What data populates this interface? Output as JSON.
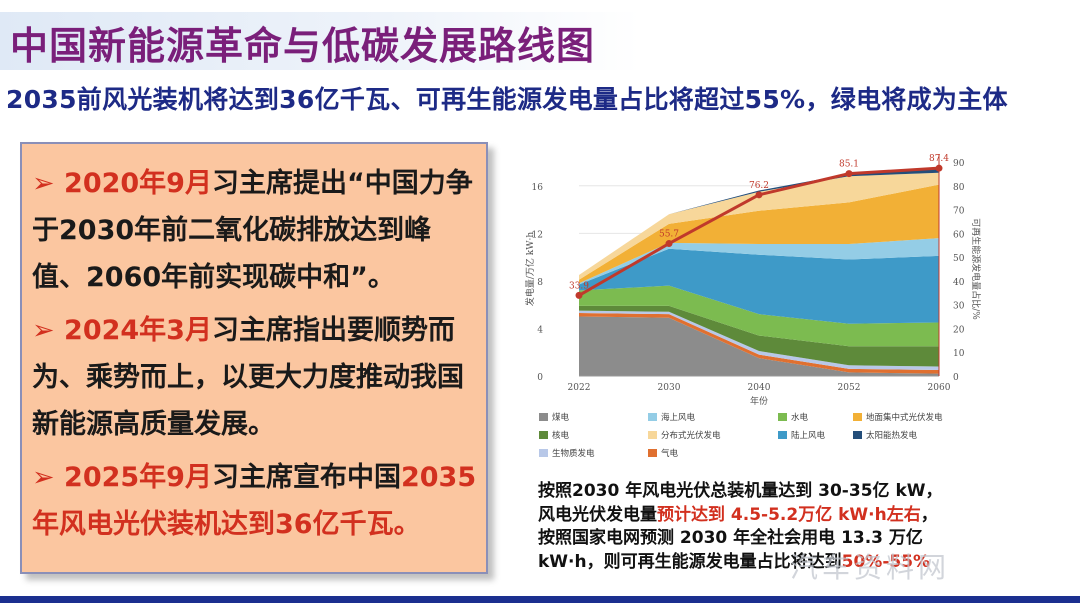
{
  "title": "中国新能源革命与低碳发展路线图",
  "subtitle": "2035前风光装机将达到36亿千瓦、可再生能源发电量占比将超过55%，绿电将成为主体",
  "bullets": [
    {
      "arrow": "➢",
      "date": "2020年9月",
      "text": "习主席提出“中国力争于2030年前二氧化碳排放达到峰值、2060年前实现碳中和”。"
    },
    {
      "arrow": "➢",
      "date": "2024年3月",
      "text": "习主席指出要顺势而为、乘势而上，以更大力度推动我国新能源高质量发展。"
    },
    {
      "arrow": "➢",
      "date": "2025年9月",
      "text": "习主席宣布中国",
      "tail_red": "2035年风电光伏装机达到36亿千瓦。"
    }
  ],
  "bottom_text": {
    "l1": "按照2030 年风电光伏总装机量达到 30-35亿 kW，",
    "l2a": "风电光伏发电量",
    "l2b": "预计达到 4.5-5.2万亿 kW·h左右",
    "l2c": "，",
    "l3": "按照国家电网预测 2030 年全社会用电 13.3 万亿",
    "l4a": "kW·h，则可再生能源发电量占比将达到",
    "l4b": "50%-55%"
  },
  "watermark": "汽车资料网",
  "chart_data": {
    "type": "area",
    "x": [
      "2022",
      "2030",
      "2040",
      "2052",
      "2060"
    ],
    "xlabel": "年份",
    "ylabel": "发电量/万亿 kW·h",
    "ylabel_right": "可再生能源发电量占比/%",
    "ylim": [
      0,
      18
    ],
    "yticks": [
      "0",
      "4",
      "8",
      "12",
      "16"
    ],
    "ylim_right": [
      0,
      90
    ],
    "yticks_right": [
      "0",
      "10",
      "20",
      "30",
      "40",
      "50",
      "60",
      "70",
      "80",
      "90"
    ],
    "series": [
      {
        "name": "煤电",
        "color": "#8c8c8c",
        "values": [
          5.0,
          4.9,
          1.5,
          0.3,
          0.2
        ]
      },
      {
        "name": "气电",
        "color": "#e07030",
        "values": [
          0.3,
          0.3,
          0.3,
          0.3,
          0.3
        ]
      },
      {
        "name": "生物质发电",
        "color": "#b8c8e8",
        "values": [
          0.2,
          0.2,
          0.3,
          0.3,
          0.3
        ]
      },
      {
        "name": "核电",
        "color": "#5e8a3a",
        "values": [
          0.4,
          0.5,
          1.3,
          1.6,
          1.7
        ]
      },
      {
        "name": "水电",
        "color": "#7cbb50",
        "values": [
          1.3,
          1.7,
          1.8,
          1.9,
          2.0
        ]
      },
      {
        "name": "陆上风电",
        "color": "#3e9ac8",
        "values": [
          0.5,
          3.1,
          5.0,
          5.4,
          5.6
        ]
      },
      {
        "name": "海上风电",
        "color": "#94cde6",
        "values": [
          0.1,
          0.5,
          0.9,
          1.3,
          1.5
        ]
      },
      {
        "name": "地面集中式光伏发电",
        "color": "#f2b036",
        "values": [
          0.3,
          1.6,
          2.8,
          3.5,
          4.5
        ]
      },
      {
        "name": "分布式光伏发电",
        "color": "#f7d79a",
        "values": [
          0.4,
          0.8,
          1.6,
          2.2,
          1.0
        ]
      },
      {
        "name": "太阳能热发电",
        "color": "#244e7a",
        "values": [
          0.0,
          0.0,
          0.1,
          0.2,
          0.3
        ]
      }
    ],
    "line": {
      "name": "可再生能源发电量占比",
      "color": "#c0392b",
      "values": [
        33.9,
        55.7,
        76.2,
        85.1,
        87.4
      ],
      "labels": [
        "33.9",
        "55.7",
        "76.2",
        "85.1",
        "87.4"
      ]
    },
    "legend": [
      "煤电",
      "海上风电",
      "水电",
      "地面集中式光伏发电",
      "核电",
      "分布式光伏发电",
      "陆上风电",
      "太阳能热发电",
      "生物质发电",
      "气电"
    ]
  }
}
